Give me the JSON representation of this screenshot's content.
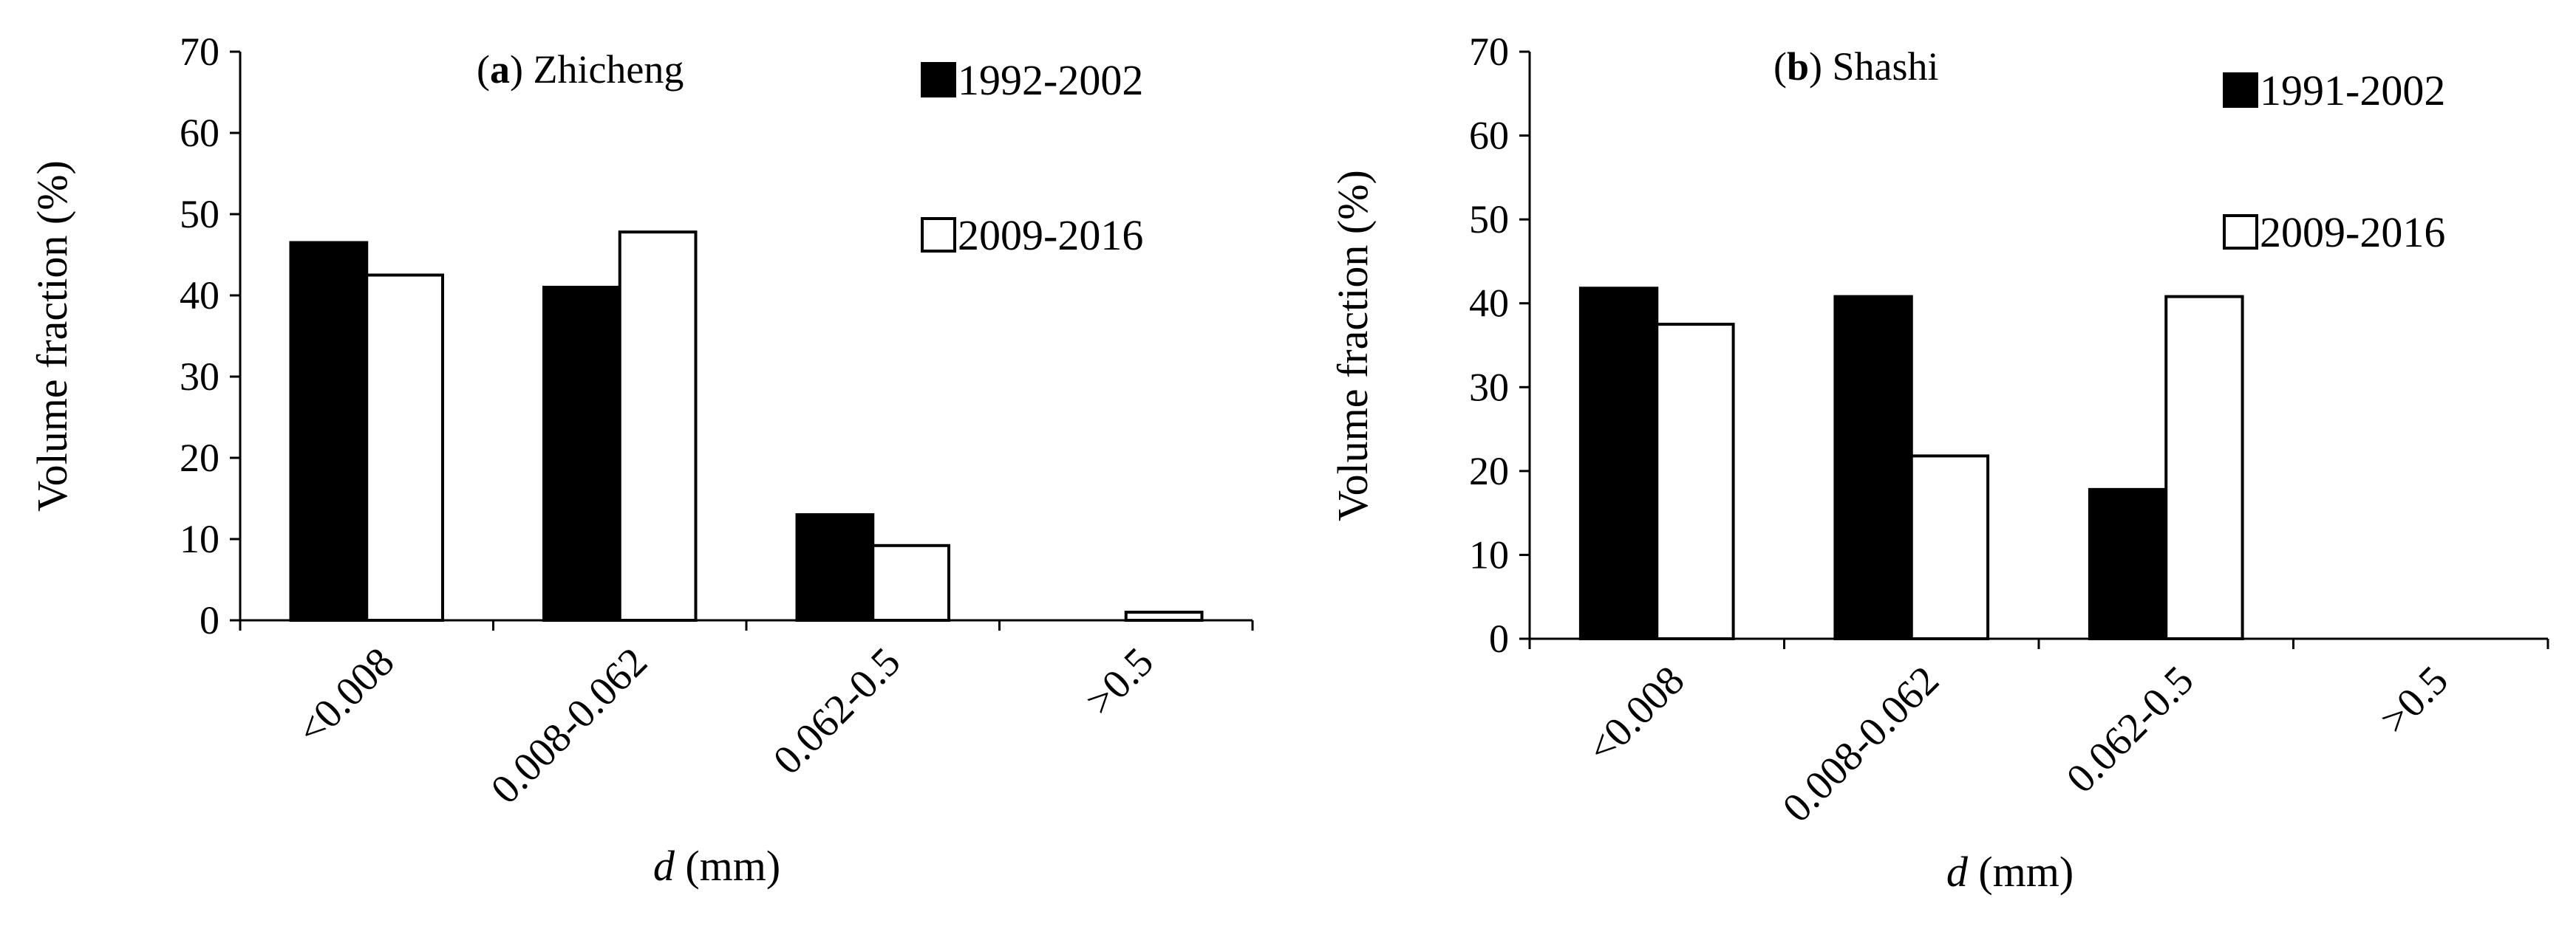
{
  "chart_data": [
    {
      "type": "bar",
      "panel_tag": "a",
      "title": "Zhicheng",
      "ylabel": "Volume fraction  (%)",
      "xlabel_italic": "d",
      "xlabel_rest": " (mm)",
      "ylim": [
        0,
        70
      ],
      "yticks": [
        0,
        10,
        20,
        30,
        40,
        50,
        60,
        70
      ],
      "categories": [
        "<0.008",
        "0.008-0.062",
        "0.062-0.5",
        ">0.5"
      ],
      "series": [
        {
          "name": "1992-2002",
          "color": "#000000",
          "values": [
            46.5,
            41.0,
            13.0,
            0.0
          ]
        },
        {
          "name": "2009-2016",
          "color": "#ffffff",
          "values": [
            42.5,
            47.8,
            9.2,
            1.0
          ]
        }
      ],
      "grid": false,
      "legend": "top-right"
    },
    {
      "type": "bar",
      "panel_tag": "b",
      "title": "Shashi",
      "ylabel": "Volume fraction  (%)",
      "xlabel_italic": "d",
      "xlabel_rest": " (mm)",
      "ylim": [
        0,
        70
      ],
      "yticks": [
        0,
        10,
        20,
        30,
        40,
        50,
        60,
        70
      ],
      "categories": [
        "<0.008",
        "0.008-0.062",
        "0.062-0.5",
        ">0.5"
      ],
      "series": [
        {
          "name": "1991-2002",
          "color": "#000000",
          "values": [
            41.8,
            40.8,
            17.8,
            0.0
          ]
        },
        {
          "name": "2009-2016",
          "color": "#ffffff",
          "values": [
            37.5,
            21.8,
            40.8,
            0.0
          ]
        }
      ],
      "grid": false,
      "legend": "top-right"
    }
  ]
}
